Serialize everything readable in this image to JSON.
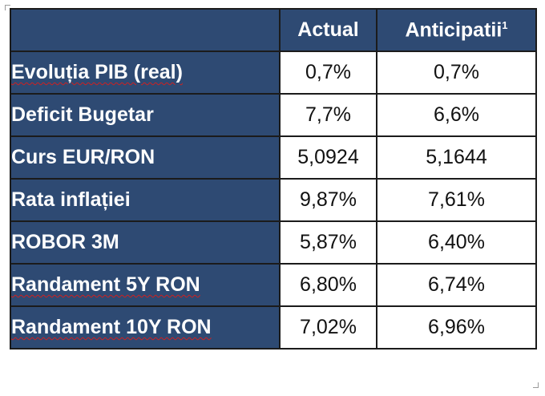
{
  "table": {
    "header": {
      "col_label": "",
      "col_actual": "Actual",
      "col_expected": "Anticipatii",
      "col_expected_footnote": "1"
    },
    "rows": [
      {
        "label": "Evoluția PIB (real)",
        "actual": "0,7%",
        "expected": "0,7%"
      },
      {
        "label": "Deficit Bugetar",
        "actual": "7,7%",
        "expected": "6,6%"
      },
      {
        "label": "Curs EUR/RON",
        "actual": "5,0924",
        "expected": "5,1644"
      },
      {
        "label": "Rata inflației",
        "actual": "9,87%",
        "expected": "7,61%"
      },
      {
        "label": "ROBOR 3M",
        "actual": "5,87%",
        "expected": "6,40%"
      },
      {
        "label": "Randament 5Y RON",
        "actual": "6,80%",
        "expected": "6,74%"
      },
      {
        "label": "Randament 10Y RON",
        "actual": "7,02%",
        "expected": "6,96%"
      }
    ],
    "colors": {
      "header_background": "#2e4a73",
      "header_text": "#ffffff",
      "cell_background": "#ffffff",
      "border": "#1b1b1b",
      "spellcheck_underline": "#d02020"
    }
  }
}
